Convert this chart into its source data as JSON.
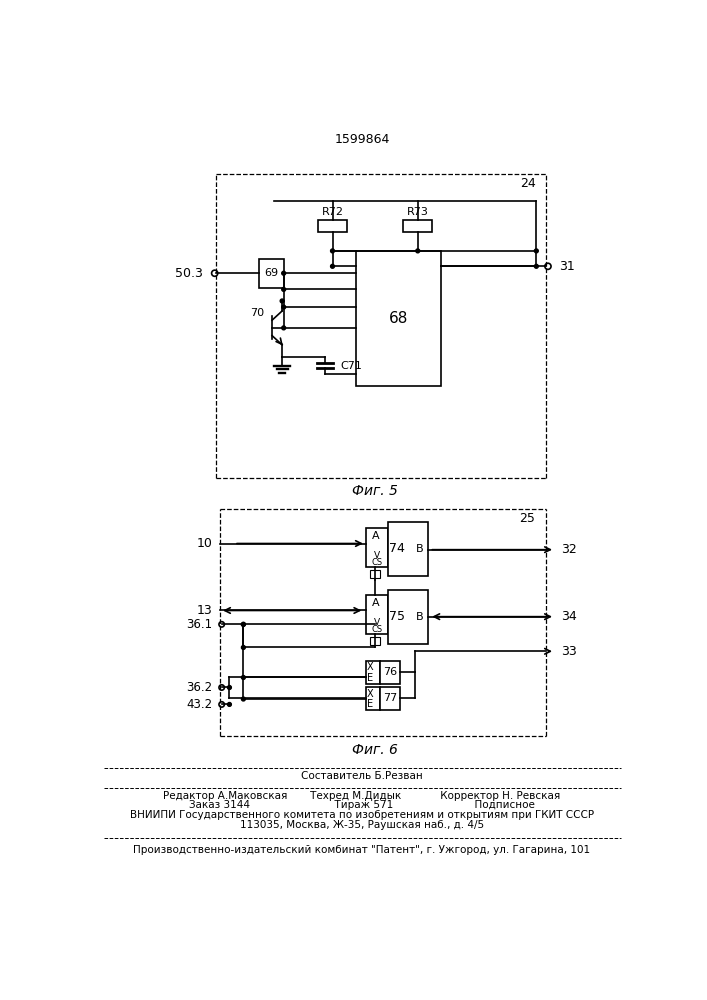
{
  "title": "1599864",
  "fig5_label": "Фиг. 5",
  "fig6_label": "Фиг. 6",
  "background": "#ffffff",
  "line_color": "#000000",
  "footer_lines": [
    "Составитель Б.Резван",
    "Редактор А.Маковская       Техред М.Дидык            Корректор Н. Ревская",
    "Заказ 3144                          Тираж 571                         Подписное",
    "ВНИИПИ Государственного комитета по изобретениям и открытиям при ГКИТ СССР",
    "113035, Москва, Ж-35, Раушская наб., д. 4/5",
    "Производственно-издательский комбинат \"Патент\", г. Ужгород, ул. Гагарина, 101"
  ]
}
